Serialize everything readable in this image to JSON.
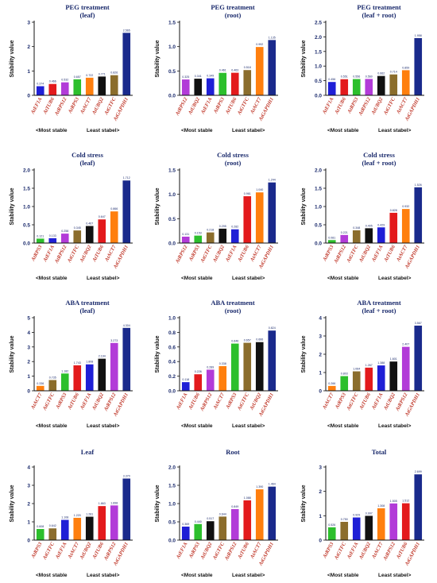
{
  "figure": {
    "ylabel": "Stability value",
    "footer_left": "<Most stable",
    "footer_right": "Least stabel>"
  },
  "palette": {
    "labels": [
      "AtEF1A",
      "AtTUB6",
      "AtRPS3",
      "AtRPS12",
      "AtACT7",
      "AtUBQ2",
      "AtGTFC",
      "AtGAPDH1"
    ],
    "colors": [
      "#1f1fd6",
      "#e31a1c",
      "#2cbf2c",
      "#b23bd8",
      "#ff7f0e",
      "#111111",
      "#8b6d2c",
      "#1a2a8c"
    ]
  },
  "chart_data": [
    {
      "type": "bar",
      "title": "PEG treatment",
      "subtitle": "(leaf)",
      "ylim": [
        0,
        3
      ],
      "yticks": [
        0,
        1,
        2,
        3
      ],
      "categories": [
        "AtEF1A",
        "AtTUB6",
        "AtRPS12",
        "AtRPS3",
        "AtACT7",
        "AtUBQ2",
        "AtGTFC",
        "AtGAPDH1"
      ],
      "values": [
        0.374,
        0.466,
        0.532,
        0.657,
        0.722,
        0.771,
        0.826,
        2.565
      ]
    },
    {
      "type": "bar",
      "title": "PEG treatment",
      "subtitle": "(root)",
      "ylim": [
        0,
        1.5
      ],
      "yticks": [
        0.0,
        0.5,
        1.0,
        1.5
      ],
      "categories": [
        "AtRPS12",
        "AtUBQ2",
        "AtEF1A",
        "AtRPS3",
        "AtTUB6",
        "AtGTFC",
        "AtACT7",
        "AtGAPDH1"
      ],
      "values": [
        0.325,
        0.341,
        0.349,
        0.461,
        0.463,
        0.518,
        0.992,
        1.135
      ]
    },
    {
      "type": "bar",
      "title": "PEG treatment",
      "subtitle": "(leaf + root)",
      "ylim": [
        0,
        2.5
      ],
      "yticks": [
        0.0,
        0.5,
        1.0,
        1.5,
        2.0,
        2.5
      ],
      "categories": [
        "AtEF1A",
        "AtTUB6",
        "AtRPS3",
        "AtRPS12",
        "AtUBQ2",
        "AtGTFC",
        "AtACT7",
        "AtGAPDH1"
      ],
      "values": [
        0.456,
        0.551,
        0.556,
        0.56,
        0.662,
        0.714,
        0.859,
        1.958
      ]
    },
    {
      "type": "bar",
      "title": "Cold stress",
      "subtitle": "(leaf)",
      "ylim": [
        0,
        2.0
      ],
      "yticks": [
        0.0,
        0.5,
        1.0,
        1.5,
        2.0
      ],
      "categories": [
        "AtRPS3",
        "AtEF1A",
        "AtRPS12",
        "AtGTFC",
        "AtUBQ2",
        "AtTUB6",
        "AtACT7",
        "AtGAPDH1"
      ],
      "values": [
        0.121,
        0.133,
        0.258,
        0.345,
        0.467,
        0.647,
        0.866,
        1.712
      ]
    },
    {
      "type": "bar",
      "title": "Cold stress",
      "subtitle": "(root)",
      "ylim": [
        0,
        1.5
      ],
      "yticks": [
        0.0,
        0.5,
        1.0,
        1.5
      ],
      "categories": [
        "AtRPS12",
        "AtRPS3",
        "AtGTFC",
        "AtUBQ2",
        "AtEF1A",
        "AtTUB6",
        "AtACT7",
        "AtGAPDH1"
      ],
      "values": [
        0.131,
        0.153,
        0.218,
        0.295,
        0.282,
        0.961,
        1.04,
        1.244
      ]
    },
    {
      "type": "bar",
      "title": "Cold stress",
      "subtitle": "(leaf + root)",
      "ylim": [
        0,
        2.0
      ],
      "yticks": [
        0.0,
        0.5,
        1.0,
        1.5,
        2.0
      ],
      "categories": [
        "AtRPS3",
        "AtRPS12",
        "AtGTFC",
        "AtUBQ2",
        "AtEF1A",
        "AtTUB6",
        "AtACT7",
        "AtGAPDH1"
      ],
      "values": [
        0.081,
        0.221,
        0.348,
        0.405,
        0.429,
        0.828,
        0.932,
        1.526
      ]
    },
    {
      "type": "bar",
      "title": "ABA treatment",
      "subtitle": "(leaf)",
      "ylim": [
        0,
        5
      ],
      "yticks": [
        0,
        1,
        2,
        3,
        4,
        5
      ],
      "categories": [
        "AtACT7",
        "AtGTFC",
        "AtRPS3",
        "AtTUB6",
        "AtEF1A",
        "AtUBQ2",
        "AtRPS12",
        "AtGAPDH1"
      ],
      "values": [
        0.336,
        0.735,
        1.182,
        1.743,
        1.808,
        2.194,
        3.273,
        4.304
      ]
    },
    {
      "type": "bar",
      "title": "ABA treatment",
      "subtitle": "(root)",
      "ylim": [
        0,
        1.0
      ],
      "yticks": [
        0.0,
        0.2,
        0.4,
        0.6,
        0.8,
        1.0
      ],
      "categories": [
        "AtEF1A",
        "AtTUB6",
        "AtRPS12",
        "AtACT7",
        "AtRPS3",
        "AtGTFC",
        "AtUBQ2",
        "AtGAPDH1"
      ],
      "values": [
        0.118,
        0.226,
        0.289,
        0.338,
        0.646,
        0.657,
        0.666,
        0.824
      ]
    },
    {
      "type": "bar",
      "title": "ABA treatment",
      "subtitle": "(leaf + root)",
      "ylim": [
        0,
        4
      ],
      "yticks": [
        0,
        1,
        2,
        3,
        4
      ],
      "categories": [
        "AtACT7",
        "AtRPS3",
        "AtGTFC",
        "AtTUB6",
        "AtEF1A",
        "AtUBQ2",
        "AtRPS12",
        "AtGAPDH1"
      ],
      "values": [
        0.266,
        0.803,
        1.064,
        1.267,
        1.388,
        1.601,
        2.407,
        3.567
      ]
    },
    {
      "type": "bar",
      "title": "Leaf",
      "subtitle": "",
      "ylim": [
        0,
        4
      ],
      "yticks": [
        0,
        1,
        2,
        3,
        4
      ],
      "categories": [
        "AtRPS3",
        "AtGTFC",
        "AtEF1A",
        "AtACT7",
        "AtUBQ2",
        "AtTUB6",
        "AtRPS12",
        "AtGAPDH1"
      ],
      "values": [
        0.608,
        0.642,
        1.108,
        1.22,
        1.281,
        1.863,
        1.898,
        3.37
      ]
    },
    {
      "type": "bar",
      "title": "Root",
      "subtitle": "",
      "ylim": [
        0,
        2.0
      ],
      "yticks": [
        0.0,
        0.5,
        1.0,
        1.5,
        2.0
      ],
      "categories": [
        "AtEF1A",
        "AtRPS3",
        "AtUBQ2",
        "AtGTFC",
        "AtRPS12",
        "AtTUB6",
        "AtACT7",
        "AtGAPDH1"
      ],
      "values": [
        0.369,
        0.44,
        0.517,
        0.644,
        0.849,
        1.088,
        1.39,
        1.464
      ]
    },
    {
      "type": "bar",
      "title": "Total",
      "subtitle": "",
      "ylim": [
        0,
        3
      ],
      "yticks": [
        0,
        1,
        2,
        3
      ],
      "categories": [
        "AtRPS3",
        "AtGTFC",
        "AtEF1A",
        "AtUBQ2",
        "AtACT7",
        "AtRPS12",
        "AtTUB6",
        "AtGAPDH1"
      ],
      "values": [
        0.526,
        0.75,
        0.929,
        0.997,
        1.308,
        1.505,
        1.512,
        2.699
      ]
    }
  ]
}
